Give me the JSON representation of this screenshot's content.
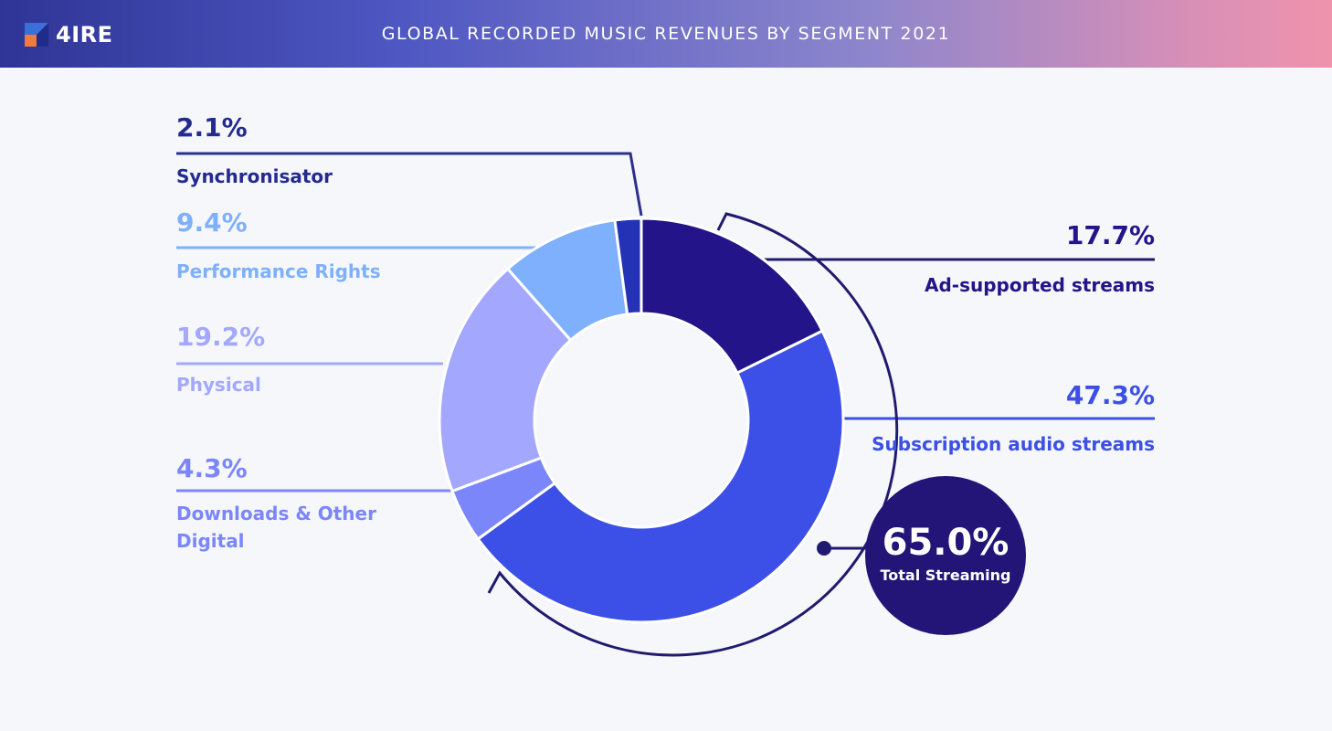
{
  "header": {
    "logo_text": "4IRE",
    "title": "GLOBAL RECORDED MUSIC REVENUES BY SEGMENT 2021"
  },
  "colors": {
    "synchronisation": "#2432b8",
    "performance_rights": "#7fb0fd",
    "physical": "#a3a8fe",
    "downloads": "#7b86fb",
    "subscription": "#3c4fe6",
    "ad_supported": "#241489",
    "line_dark": "#1f1a6e",
    "total_circle": "#231477"
  },
  "chart_data": {
    "type": "pie",
    "title": "GLOBAL RECORDED MUSIC REVENUES BY SEGMENT 2021",
    "donut": true,
    "slices": [
      {
        "label": "Ad-supported streams",
        "value": 17.7,
        "value_label": "17.7%",
        "color": "#241489"
      },
      {
        "label": "Subscription audio streams",
        "value": 47.3,
        "value_label": "47.3%",
        "color": "#3c4fe6"
      },
      {
        "label": "Downloads & Other Digital",
        "value": 4.3,
        "value_label": "4.3%",
        "color": "#7b86fb"
      },
      {
        "label": "Physical",
        "value": 19.2,
        "value_label": "19.2%",
        "color": "#a3a8fe"
      },
      {
        "label": "Performance Rights",
        "value": 9.4,
        "value_label": "9.4%",
        "color": "#7fb0fd"
      },
      {
        "label": "Synchronisator",
        "value": 2.1,
        "value_label": "2.1%",
        "color": "#2432b8"
      }
    ],
    "total_streaming": {
      "label": "Total Streaming",
      "value": 65.0,
      "value_label": "65.0%"
    }
  },
  "labels": {
    "sync": {
      "pct": "2.1%",
      "name": "Synchronisator"
    },
    "perf": {
      "pct": "9.4%",
      "name": "Performance Rights"
    },
    "phys": {
      "pct": "19.2%",
      "name": "Physical"
    },
    "down": {
      "pct": "4.3%",
      "name_line1": "Downloads & Other",
      "name_line2": "Digital"
    },
    "ad": {
      "pct": "17.7%",
      "name": "Ad-supported streams"
    },
    "subs": {
      "pct": "47.3%",
      "name": "Subscription audio streams"
    },
    "total": {
      "pct": "65.0%",
      "name": "Total Streaming"
    }
  }
}
